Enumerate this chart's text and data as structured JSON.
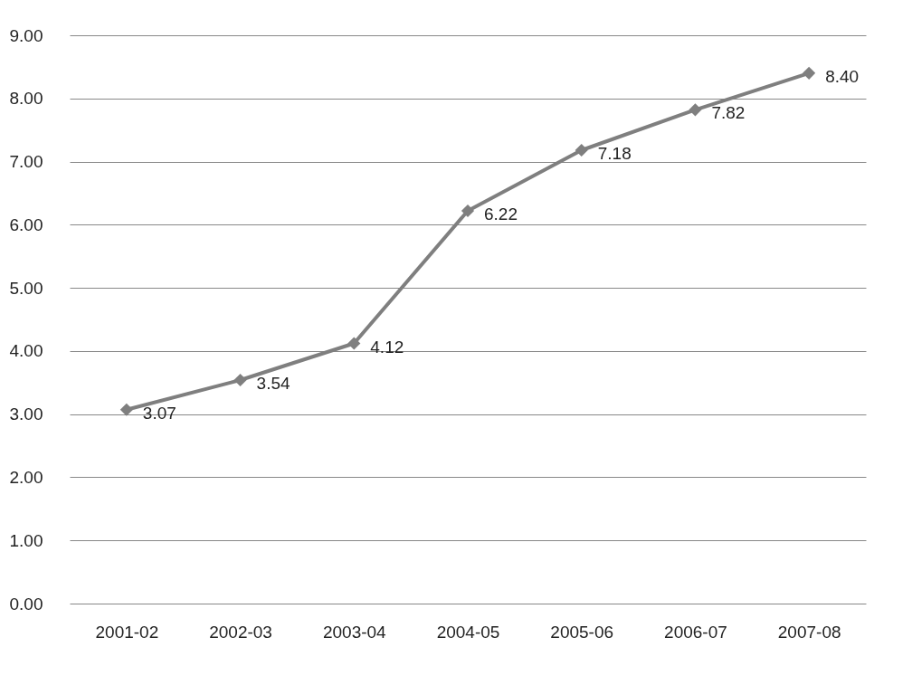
{
  "chart_data": {
    "type": "line",
    "categories": [
      "2001-02",
      "2002-03",
      "2003-04",
      "2004-05",
      "2005-06",
      "2006-07",
      "2007-08"
    ],
    "series": [
      {
        "color": "#7f7f7f",
        "values": [
          3.07,
          3.54,
          4.12,
          6.22,
          7.18,
          7.82,
          8.4
        ],
        "value_labels": [
          "3.07",
          "3.54",
          "4.12",
          "6.22",
          "7.18",
          "7.82",
          "8.40"
        ]
      }
    ],
    "ylim": [
      0,
      9
    ],
    "yticks": [
      {
        "value": 0,
        "label": "0.00"
      },
      {
        "value": 1,
        "label": "1.00"
      },
      {
        "value": 2,
        "label": "2.00"
      },
      {
        "value": 3,
        "label": "3.00"
      },
      {
        "value": 4,
        "label": "4.00"
      },
      {
        "value": 5,
        "label": "5.00"
      },
      {
        "value": 6,
        "label": "6.00"
      },
      {
        "value": 7,
        "label": "7.00"
      },
      {
        "value": 8,
        "label": "8.00"
      },
      {
        "value": 9,
        "label": "9.00"
      }
    ],
    "grid": "y",
    "marker": "diamond",
    "line_style": "solid"
  }
}
